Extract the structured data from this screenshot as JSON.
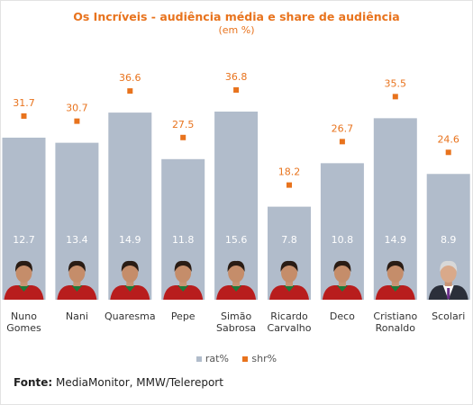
{
  "chart_data": {
    "type": "bar",
    "title": "Os Incríveis - audiência média e share de audiência",
    "subtitle": "(em %)",
    "categories": [
      [
        "Nuno",
        "Gomes"
      ],
      [
        "Nani"
      ],
      [
        "Quaresma"
      ],
      [
        "Pepe"
      ],
      [
        "Simão",
        "Sabrosa"
      ],
      [
        "Ricardo",
        "Carvalho"
      ],
      [
        "Deco"
      ],
      [
        "Cristiano",
        "Ronaldo"
      ],
      [
        "Scolari"
      ]
    ],
    "series": [
      {
        "name": "rat%",
        "values": [
          12.7,
          13.4,
          14.9,
          11.8,
          15.6,
          7.8,
          10.8,
          14.9,
          8.9
        ]
      },
      {
        "name": "shr%",
        "values": [
          31.7,
          30.7,
          36.6,
          27.5,
          36.8,
          18.2,
          26.7,
          35.5,
          24.6
        ]
      }
    ],
    "colors": {
      "rat": "#b1bccb",
      "shr": "#e8731d"
    },
    "legend_position": "bottom",
    "grid": false
  },
  "source": {
    "label": "Fonte:",
    "text": " MediaMonitor, MMW/Telereport"
  }
}
